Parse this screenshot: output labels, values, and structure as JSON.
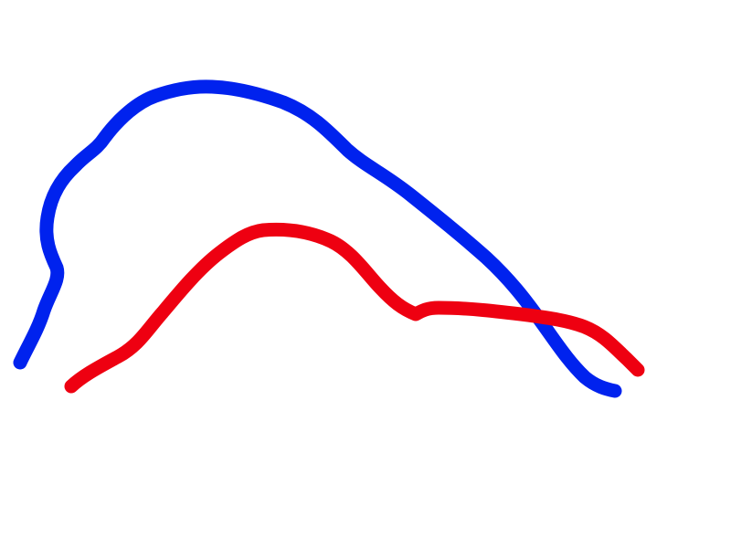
{
  "strokes": [
    {
      "name": "blue-stroke",
      "color": "#0022ee"
    },
    {
      "name": "red-stroke",
      "color": "#ee0011"
    }
  ],
  "background_color": "#ffffff"
}
